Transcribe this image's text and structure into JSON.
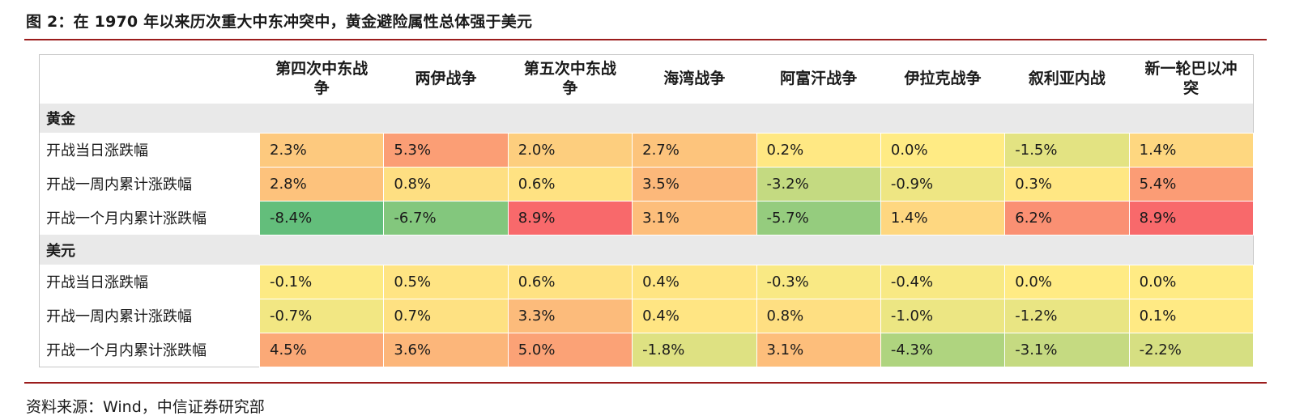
{
  "figure": {
    "title": "图 2：在 1970 年以来历次重大中东冲突中，黄金避险属性总体强于美元",
    "source": "资料来源：Wind，中信证券研究部"
  },
  "colors": {
    "accent_rule_red": "#9b1c1c",
    "section_row_bg": "#e9e9e9",
    "table_border": "#c6c6c6",
    "heat_min_green": "#63be7b",
    "heat_mid_yellow": "#ffeb84",
    "heat_max_red": "#f8696b"
  },
  "chart_data": {
    "type": "table",
    "title": "图 2：在 1970 年以来历次重大中东冲突中，黄金避险属性总体强于美元",
    "columns": [
      "第四次中东战争",
      "两伊战争",
      "第五次中东战争",
      "海湾战争",
      "阿富汗战争",
      "伊拉克战争",
      "叙利亚内战",
      "新一轮巴以冲突"
    ],
    "row_label_header": "",
    "sections": [
      {
        "label": "黄金",
        "rows": [
          {
            "label": "开战当日涨跌幅",
            "values": [
              2.3,
              5.3,
              2.0,
              2.7,
              0.2,
              0.0,
              -1.5,
              1.4
            ]
          },
          {
            "label": "开战一周内累计涨跌幅",
            "values": [
              2.8,
              0.8,
              0.6,
              3.5,
              -3.2,
              -0.9,
              0.3,
              5.4
            ]
          },
          {
            "label": "开战一个月内累计涨跌幅",
            "values": [
              -8.4,
              -6.7,
              8.9,
              3.1,
              -5.7,
              1.4,
              6.2,
              8.9
            ]
          }
        ]
      },
      {
        "label": "美元",
        "rows": [
          {
            "label": "开战当日涨跌幅",
            "values": [
              -0.1,
              0.5,
              0.6,
              0.4,
              -0.3,
              -0.4,
              0.0,
              0.0
            ]
          },
          {
            "label": "开战一周内累计涨跌幅",
            "values": [
              -0.7,
              0.7,
              3.3,
              0.4,
              0.8,
              -1.0,
              -1.2,
              0.1
            ]
          },
          {
            "label": "开战一个月内累计涨跌幅",
            "values": [
              4.5,
              3.6,
              5.0,
              -1.8,
              3.1,
              -4.3,
              -3.1,
              -2.2
            ]
          }
        ]
      }
    ],
    "value_format": "percent_one_decimal",
    "heatmap": {
      "scope": "whole-table",
      "min": -8.4,
      "mid": 0,
      "max": 8.9,
      "min_color": "#63be7b",
      "mid_color": "#ffeb84",
      "max_color": "#f8696b"
    }
  }
}
